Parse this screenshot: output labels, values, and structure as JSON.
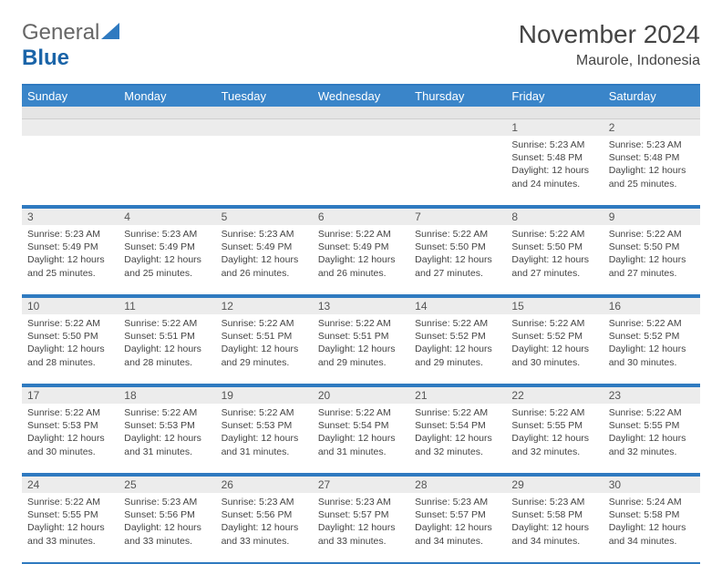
{
  "logo": {
    "general": "General",
    "blue": "Blue",
    "triangle_color": "#2f7ac0"
  },
  "header": {
    "month_title": "November 2024",
    "location": "Maurole, Indonesia"
  },
  "day_headers": [
    "Sunday",
    "Monday",
    "Tuesday",
    "Wednesday",
    "Thursday",
    "Friday",
    "Saturday"
  ],
  "colors": {
    "header_bg": "#3a85c9",
    "border": "#2f7ac0",
    "daynum_bg": "#ececec",
    "subhdr_bg": "#e5e5e5",
    "text": "#444444",
    "white": "#ffffff"
  },
  "weeks": [
    [
      {
        "n": "",
        "sr": "",
        "ss": "",
        "dl": ""
      },
      {
        "n": "",
        "sr": "",
        "ss": "",
        "dl": ""
      },
      {
        "n": "",
        "sr": "",
        "ss": "",
        "dl": ""
      },
      {
        "n": "",
        "sr": "",
        "ss": "",
        "dl": ""
      },
      {
        "n": "",
        "sr": "",
        "ss": "",
        "dl": ""
      },
      {
        "n": "1",
        "sr": "Sunrise: 5:23 AM",
        "ss": "Sunset: 5:48 PM",
        "dl": "Daylight: 12 hours and 24 minutes."
      },
      {
        "n": "2",
        "sr": "Sunrise: 5:23 AM",
        "ss": "Sunset: 5:48 PM",
        "dl": "Daylight: 12 hours and 25 minutes."
      }
    ],
    [
      {
        "n": "3",
        "sr": "Sunrise: 5:23 AM",
        "ss": "Sunset: 5:49 PM",
        "dl": "Daylight: 12 hours and 25 minutes."
      },
      {
        "n": "4",
        "sr": "Sunrise: 5:23 AM",
        "ss": "Sunset: 5:49 PM",
        "dl": "Daylight: 12 hours and 25 minutes."
      },
      {
        "n": "5",
        "sr": "Sunrise: 5:23 AM",
        "ss": "Sunset: 5:49 PM",
        "dl": "Daylight: 12 hours and 26 minutes."
      },
      {
        "n": "6",
        "sr": "Sunrise: 5:22 AM",
        "ss": "Sunset: 5:49 PM",
        "dl": "Daylight: 12 hours and 26 minutes."
      },
      {
        "n": "7",
        "sr": "Sunrise: 5:22 AM",
        "ss": "Sunset: 5:50 PM",
        "dl": "Daylight: 12 hours and 27 minutes."
      },
      {
        "n": "8",
        "sr": "Sunrise: 5:22 AM",
        "ss": "Sunset: 5:50 PM",
        "dl": "Daylight: 12 hours and 27 minutes."
      },
      {
        "n": "9",
        "sr": "Sunrise: 5:22 AM",
        "ss": "Sunset: 5:50 PM",
        "dl": "Daylight: 12 hours and 27 minutes."
      }
    ],
    [
      {
        "n": "10",
        "sr": "Sunrise: 5:22 AM",
        "ss": "Sunset: 5:50 PM",
        "dl": "Daylight: 12 hours and 28 minutes."
      },
      {
        "n": "11",
        "sr": "Sunrise: 5:22 AM",
        "ss": "Sunset: 5:51 PM",
        "dl": "Daylight: 12 hours and 28 minutes."
      },
      {
        "n": "12",
        "sr": "Sunrise: 5:22 AM",
        "ss": "Sunset: 5:51 PM",
        "dl": "Daylight: 12 hours and 29 minutes."
      },
      {
        "n": "13",
        "sr": "Sunrise: 5:22 AM",
        "ss": "Sunset: 5:51 PM",
        "dl": "Daylight: 12 hours and 29 minutes."
      },
      {
        "n": "14",
        "sr": "Sunrise: 5:22 AM",
        "ss": "Sunset: 5:52 PM",
        "dl": "Daylight: 12 hours and 29 minutes."
      },
      {
        "n": "15",
        "sr": "Sunrise: 5:22 AM",
        "ss": "Sunset: 5:52 PM",
        "dl": "Daylight: 12 hours and 30 minutes."
      },
      {
        "n": "16",
        "sr": "Sunrise: 5:22 AM",
        "ss": "Sunset: 5:52 PM",
        "dl": "Daylight: 12 hours and 30 minutes."
      }
    ],
    [
      {
        "n": "17",
        "sr": "Sunrise: 5:22 AM",
        "ss": "Sunset: 5:53 PM",
        "dl": "Daylight: 12 hours and 30 minutes."
      },
      {
        "n": "18",
        "sr": "Sunrise: 5:22 AM",
        "ss": "Sunset: 5:53 PM",
        "dl": "Daylight: 12 hours and 31 minutes."
      },
      {
        "n": "19",
        "sr": "Sunrise: 5:22 AM",
        "ss": "Sunset: 5:53 PM",
        "dl": "Daylight: 12 hours and 31 minutes."
      },
      {
        "n": "20",
        "sr": "Sunrise: 5:22 AM",
        "ss": "Sunset: 5:54 PM",
        "dl": "Daylight: 12 hours and 31 minutes."
      },
      {
        "n": "21",
        "sr": "Sunrise: 5:22 AM",
        "ss": "Sunset: 5:54 PM",
        "dl": "Daylight: 12 hours and 32 minutes."
      },
      {
        "n": "22",
        "sr": "Sunrise: 5:22 AM",
        "ss": "Sunset: 5:55 PM",
        "dl": "Daylight: 12 hours and 32 minutes."
      },
      {
        "n": "23",
        "sr": "Sunrise: 5:22 AM",
        "ss": "Sunset: 5:55 PM",
        "dl": "Daylight: 12 hours and 32 minutes."
      }
    ],
    [
      {
        "n": "24",
        "sr": "Sunrise: 5:22 AM",
        "ss": "Sunset: 5:55 PM",
        "dl": "Daylight: 12 hours and 33 minutes."
      },
      {
        "n": "25",
        "sr": "Sunrise: 5:23 AM",
        "ss": "Sunset: 5:56 PM",
        "dl": "Daylight: 12 hours and 33 minutes."
      },
      {
        "n": "26",
        "sr": "Sunrise: 5:23 AM",
        "ss": "Sunset: 5:56 PM",
        "dl": "Daylight: 12 hours and 33 minutes."
      },
      {
        "n": "27",
        "sr": "Sunrise: 5:23 AM",
        "ss": "Sunset: 5:57 PM",
        "dl": "Daylight: 12 hours and 33 minutes."
      },
      {
        "n": "28",
        "sr": "Sunrise: 5:23 AM",
        "ss": "Sunset: 5:57 PM",
        "dl": "Daylight: 12 hours and 34 minutes."
      },
      {
        "n": "29",
        "sr": "Sunrise: 5:23 AM",
        "ss": "Sunset: 5:58 PM",
        "dl": "Daylight: 12 hours and 34 minutes."
      },
      {
        "n": "30",
        "sr": "Sunrise: 5:24 AM",
        "ss": "Sunset: 5:58 PM",
        "dl": "Daylight: 12 hours and 34 minutes."
      }
    ]
  ]
}
